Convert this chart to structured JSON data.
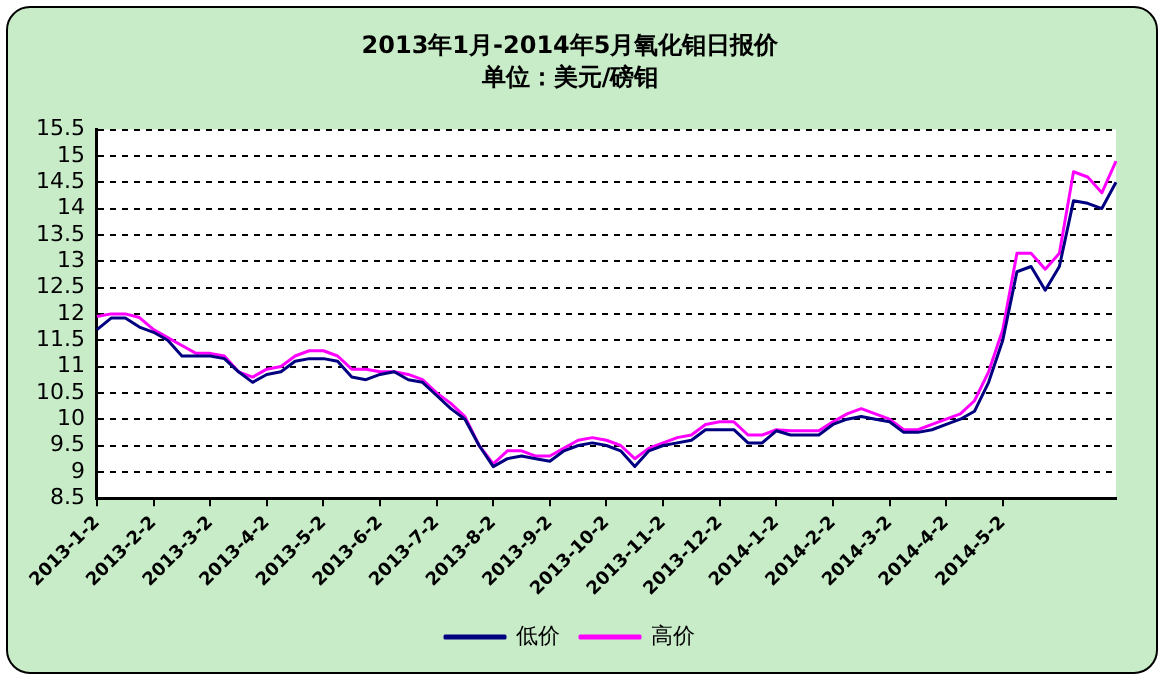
{
  "chart_data": {
    "type": "line",
    "title": "2013年1月-2014年5月氧化钼日报价",
    "subtitle": "单位：美元/磅钼",
    "categories": [
      "2013-1-2",
      null,
      null,
      null,
      "2013-2-2",
      null,
      null,
      null,
      "2013-3-2",
      null,
      null,
      null,
      "2013-4-2",
      null,
      null,
      null,
      "2013-5-2",
      null,
      null,
      null,
      "2013-6-2",
      null,
      null,
      null,
      "2013-7-2",
      null,
      null,
      null,
      "2013-8-2",
      null,
      null,
      null,
      "2013-9-2",
      null,
      null,
      null,
      "2013-10-2",
      null,
      null,
      null,
      "2013-11-2",
      null,
      null,
      null,
      "2013-12-2",
      null,
      null,
      null,
      "2014-1-2",
      null,
      null,
      null,
      "2014-2-2",
      null,
      null,
      null,
      "2014-3-2",
      null,
      null,
      null,
      "2014-4-2",
      null,
      null,
      null,
      "2014-5-2",
      null,
      null,
      null,
      null,
      null,
      null,
      null,
      null
    ],
    "series": [
      {
        "name": "低价",
        "color": "#000080",
        "values": [
          11.7,
          11.92,
          11.92,
          11.75,
          11.65,
          11.5,
          11.2,
          11.2,
          11.2,
          11.15,
          10.9,
          10.7,
          10.85,
          10.9,
          11.1,
          11.15,
          11.15,
          11.1,
          10.8,
          10.75,
          10.85,
          10.9,
          10.75,
          10.7,
          10.45,
          10.2,
          10.0,
          9.5,
          9.1,
          9.25,
          9.3,
          9.25,
          9.2,
          9.4,
          9.5,
          9.55,
          9.5,
          9.4,
          9.1,
          9.4,
          9.5,
          9.55,
          9.6,
          9.8,
          9.8,
          9.8,
          9.55,
          9.55,
          9.78,
          9.7,
          9.7,
          9.7,
          9.9,
          10.0,
          10.05,
          10.0,
          9.95,
          9.75,
          9.75,
          9.8,
          9.9,
          10.0,
          10.15,
          10.7,
          11.5,
          12.8,
          12.9,
          12.45,
          12.9,
          14.15,
          14.1,
          14.0,
          14.5
        ]
      },
      {
        "name": "高价",
        "color": "#ff00ff",
        "values": [
          11.95,
          12.0,
          12.0,
          11.93,
          11.7,
          11.55,
          11.4,
          11.25,
          11.25,
          11.2,
          10.9,
          10.8,
          10.95,
          11.0,
          11.2,
          11.3,
          11.3,
          11.2,
          10.95,
          10.95,
          10.9,
          10.9,
          10.85,
          10.75,
          10.5,
          10.3,
          10.05,
          9.5,
          9.15,
          9.4,
          9.4,
          9.3,
          9.3,
          9.45,
          9.6,
          9.65,
          9.6,
          9.5,
          9.25,
          9.45,
          9.55,
          9.65,
          9.7,
          9.9,
          9.95,
          9.95,
          9.7,
          9.7,
          9.8,
          9.78,
          9.78,
          9.78,
          9.95,
          10.1,
          10.2,
          10.1,
          10.0,
          9.8,
          9.8,
          9.9,
          10.0,
          10.1,
          10.35,
          10.9,
          11.7,
          13.15,
          13.15,
          12.85,
          13.15,
          14.7,
          14.6,
          14.3,
          14.9
        ]
      }
    ],
    "ylim": [
      8.5,
      15.5
    ],
    "yticks": [
      8.5,
      9,
      9.5,
      10,
      10.5,
      11,
      11.5,
      12,
      12.5,
      13,
      13.5,
      14,
      14.5,
      15,
      15.5
    ],
    "grid": "y",
    "legend": "bottom",
    "marker": "none",
    "line_style": "solid"
  }
}
